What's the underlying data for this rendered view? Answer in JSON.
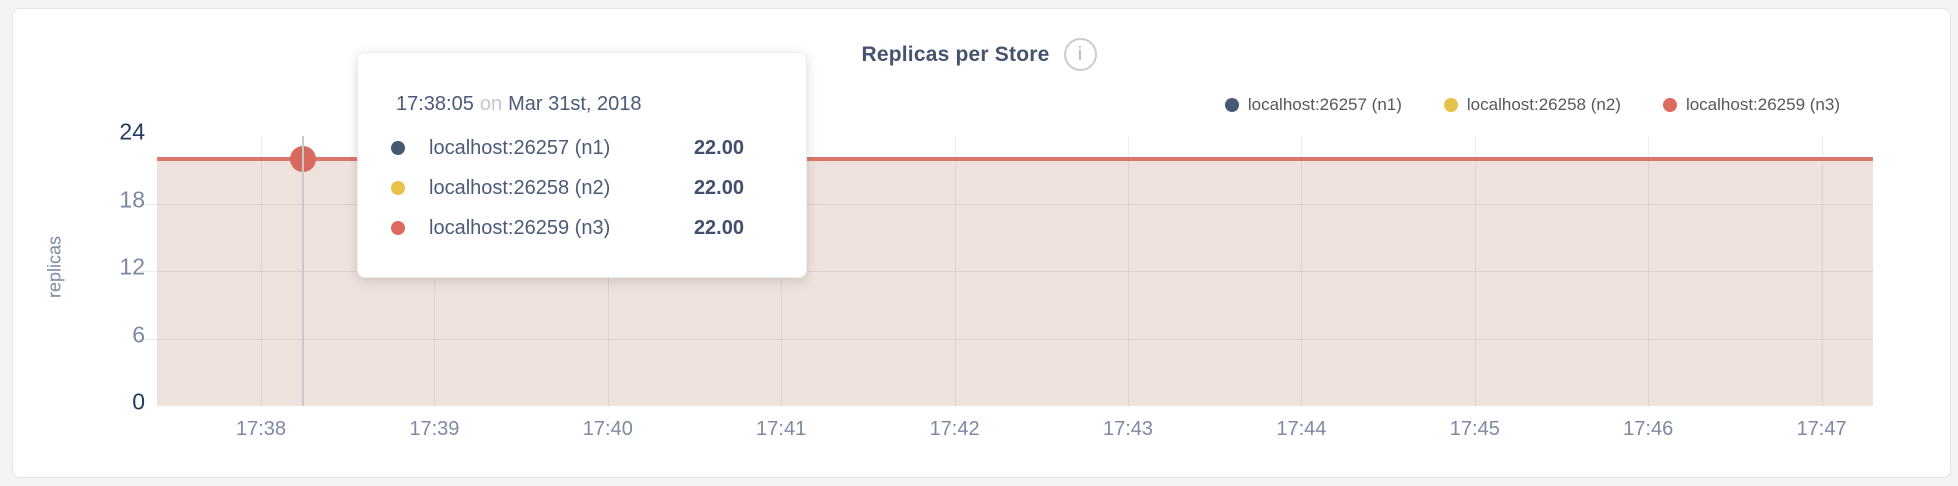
{
  "card": {
    "title": "Replicas per Store",
    "info_icon_glyph": "i"
  },
  "legend": {
    "items": [
      {
        "label": "localhost:26257 (n1)",
        "color": "#475872"
      },
      {
        "label": "localhost:26258 (n2)",
        "color": "#e7c24a"
      },
      {
        "label": "localhost:26259 (n3)",
        "color": "#dd6a5e"
      }
    ]
  },
  "tooltip": {
    "time": "17:38:05",
    "connector": "on",
    "date": "Mar 31st, 2018",
    "rows": [
      {
        "label": "localhost:26257 (n1)",
        "value": "22.00",
        "color": "#475872"
      },
      {
        "label": "localhost:26258 (n2)",
        "value": "22.00",
        "color": "#e7c24a"
      },
      {
        "label": "localhost:26259 (n3)",
        "value": "22.00",
        "color": "#dd6a5e"
      }
    ]
  },
  "chart_data": {
    "type": "area",
    "title": "Replicas per Store",
    "xlabel": "",
    "ylabel": "replicas",
    "ylim": [
      0,
      24
    ],
    "yticks": [
      24,
      18,
      12,
      6,
      0
    ],
    "x": [
      "17:38",
      "17:39",
      "17:40",
      "17:41",
      "17:42",
      "17:43",
      "17:44",
      "17:45",
      "17:46",
      "17:47"
    ],
    "series": [
      {
        "name": "localhost:26257 (n1)",
        "color": "#475872",
        "values": [
          22,
          22,
          22,
          22,
          22,
          22,
          22,
          22,
          22,
          22
        ]
      },
      {
        "name": "localhost:26258 (n2)",
        "color": "#e7c24a",
        "values": [
          22,
          22,
          22,
          22,
          22,
          22,
          22,
          22,
          22,
          22
        ]
      },
      {
        "name": "localhost:26259 (n3)",
        "color": "#db776b",
        "values": [
          22,
          22,
          22,
          22,
          22,
          22,
          22,
          22,
          22,
          22
        ]
      }
    ],
    "grid": true,
    "legend_position": "top-right",
    "style": {
      "composite_fill": "#efe2dc",
      "hover_dot_color": "#d8695e"
    },
    "hover_point": {
      "time": "17:38:05",
      "date": "Mar 31st, 2018",
      "value": 22
    }
  }
}
